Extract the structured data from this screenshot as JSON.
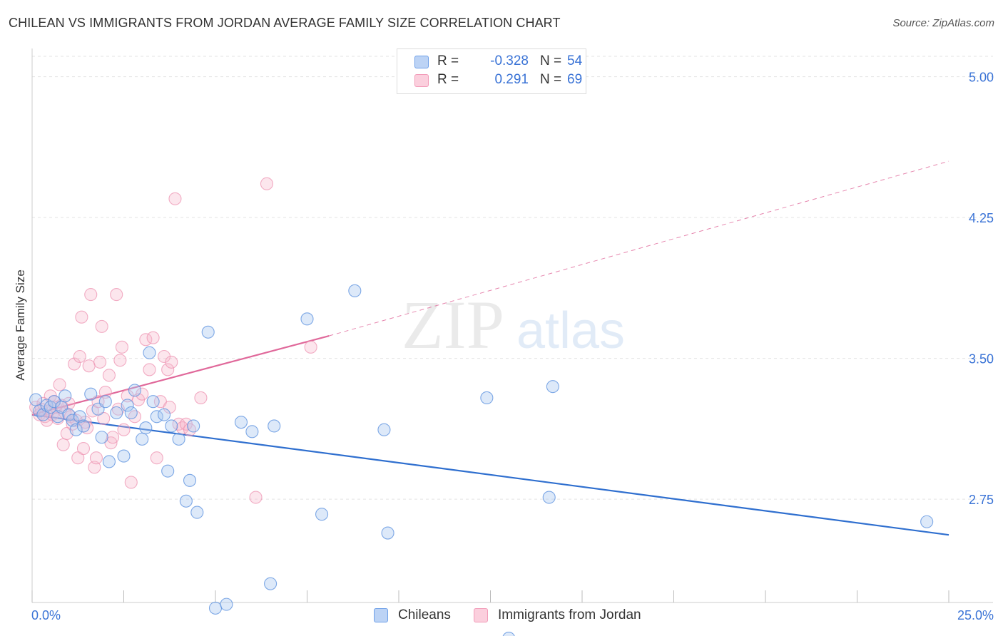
{
  "title": "CHILEAN VS IMMIGRANTS FROM JORDAN AVERAGE FAMILY SIZE CORRELATION CHART",
  "source": "Source: ZipAtlas.com",
  "watermark": {
    "zip": "ZIP",
    "atlas": "atlas"
  },
  "legend": {
    "rows": [
      {
        "r_label": "R =",
        "r_value": "-0.328",
        "n_label": "N =",
        "n_value": "54"
      },
      {
        "r_label": "R =",
        "r_value": "0.291",
        "n_label": "N =",
        "n_value": "69"
      }
    ]
  },
  "chart_data": {
    "type": "scatter",
    "title": "CHILEAN VS IMMIGRANTS FROM JORDAN AVERAGE FAMILY SIZE CORRELATION CHART",
    "xlabel": "",
    "ylabel": "Average Family Size",
    "xlim": [
      0,
      25
    ],
    "ylim": [
      2.2,
      5.12
    ],
    "x_tick_labels": [
      "0.0%",
      "25.0%"
    ],
    "y_ticks": [
      2.75,
      3.5,
      4.25,
      5.0
    ],
    "y_tick_labels": [
      "2.75",
      "3.50",
      "4.25",
      "5.00"
    ],
    "grid": true,
    "legend_position": "top-center",
    "colors": {
      "chileans": "#6fa0e8",
      "jordan": "#f29bb8",
      "chileans_line": "#2f6fcf",
      "jordan_line": "#e0689a",
      "axis_text": "#3a73d6"
    },
    "series": [
      {
        "name": "Chileans",
        "color": "#6fa0e8",
        "r": -0.328,
        "n": 54,
        "trend": {
          "x": [
            0,
            25
          ],
          "y": [
            3.2,
            2.56
          ]
        },
        "points": [
          [
            0.1,
            3.28
          ],
          [
            0.2,
            3.22
          ],
          [
            0.3,
            3.2
          ],
          [
            0.4,
            3.25
          ],
          [
            0.5,
            3.24
          ],
          [
            0.6,
            3.27
          ],
          [
            0.7,
            3.19
          ],
          [
            0.8,
            3.24
          ],
          [
            0.9,
            3.3
          ],
          [
            1.0,
            3.2
          ],
          [
            1.1,
            3.17
          ],
          [
            1.2,
            3.12
          ],
          [
            1.3,
            3.19
          ],
          [
            1.4,
            3.14
          ],
          [
            1.6,
            3.31
          ],
          [
            1.8,
            3.23
          ],
          [
            1.9,
            3.08
          ],
          [
            2.0,
            3.27
          ],
          [
            2.1,
            2.95
          ],
          [
            2.3,
            3.21
          ],
          [
            2.5,
            2.98
          ],
          [
            2.6,
            3.25
          ],
          [
            2.7,
            3.21
          ],
          [
            2.8,
            3.33
          ],
          [
            3.0,
            3.07
          ],
          [
            3.1,
            3.13
          ],
          [
            3.2,
            3.53
          ],
          [
            3.3,
            3.27
          ],
          [
            3.4,
            3.19
          ],
          [
            3.6,
            3.2
          ],
          [
            3.7,
            2.9
          ],
          [
            3.8,
            3.14
          ],
          [
            4.0,
            3.07
          ],
          [
            4.2,
            2.74
          ],
          [
            4.3,
            2.85
          ],
          [
            4.4,
            3.14
          ],
          [
            4.5,
            2.68
          ],
          [
            4.8,
            3.64
          ],
          [
            5.0,
            2.17
          ],
          [
            5.3,
            2.19
          ],
          [
            5.7,
            3.16
          ],
          [
            6.0,
            3.11
          ],
          [
            6.5,
            2.3
          ],
          [
            6.6,
            3.14
          ],
          [
            7.5,
            3.71
          ],
          [
            7.9,
            2.67
          ],
          [
            8.8,
            3.86
          ],
          [
            9.7,
            2.57
          ],
          [
            9.6,
            3.12
          ],
          [
            12.4,
            3.29
          ],
          [
            13.0,
            2.01
          ],
          [
            14.1,
            2.76
          ],
          [
            14.2,
            3.35
          ],
          [
            24.4,
            2.63
          ]
        ]
      },
      {
        "name": "Immigrants from Jordan",
        "color": "#f29bb8",
        "r": 0.291,
        "n": 69,
        "trend": {
          "x": [
            0,
            8.1
          ],
          "y": [
            3.2,
            3.62
          ]
        },
        "trend_projection": {
          "x": [
            8.1,
            25
          ],
          "y": [
            3.62,
            4.55
          ]
        },
        "points": [
          [
            0.1,
            3.24
          ],
          [
            0.2,
            3.2
          ],
          [
            0.25,
            3.23
          ],
          [
            0.3,
            3.26
          ],
          [
            0.35,
            3.19
          ],
          [
            0.4,
            3.17
          ],
          [
            0.45,
            3.22
          ],
          [
            0.5,
            3.3
          ],
          [
            0.55,
            3.2
          ],
          [
            0.6,
            3.27
          ],
          [
            0.65,
            3.24
          ],
          [
            0.7,
            3.18
          ],
          [
            0.75,
            3.36
          ],
          [
            0.8,
            3.25
          ],
          [
            0.85,
            3.04
          ],
          [
            0.9,
            3.21
          ],
          [
            0.95,
            3.1
          ],
          [
            1.0,
            3.26
          ],
          [
            1.05,
            3.19
          ],
          [
            1.1,
            3.15
          ],
          [
            1.15,
            3.47
          ],
          [
            1.2,
            3.17
          ],
          [
            1.25,
            2.97
          ],
          [
            1.3,
            3.51
          ],
          [
            1.35,
            3.72
          ],
          [
            1.4,
            3.02
          ],
          [
            1.45,
            3.16
          ],
          [
            1.5,
            3.13
          ],
          [
            1.55,
            3.46
          ],
          [
            1.6,
            3.84
          ],
          [
            1.65,
            3.22
          ],
          [
            1.7,
            2.92
          ],
          [
            1.75,
            2.97
          ],
          [
            1.8,
            3.27
          ],
          [
            1.85,
            3.48
          ],
          [
            1.9,
            3.67
          ],
          [
            1.95,
            3.18
          ],
          [
            2.0,
            3.32
          ],
          [
            2.1,
            3.41
          ],
          [
            2.15,
            3.05
          ],
          [
            2.2,
            3.08
          ],
          [
            2.3,
            3.84
          ],
          [
            2.35,
            3.23
          ],
          [
            2.4,
            3.49
          ],
          [
            2.45,
            3.56
          ],
          [
            2.5,
            3.12
          ],
          [
            2.7,
            2.84
          ],
          [
            2.8,
            3.19
          ],
          [
            2.9,
            3.28
          ],
          [
            3.0,
            3.31
          ],
          [
            3.1,
            3.6
          ],
          [
            3.2,
            3.44
          ],
          [
            3.3,
            3.61
          ],
          [
            3.4,
            2.97
          ],
          [
            3.5,
            3.27
          ],
          [
            3.6,
            3.51
          ],
          [
            3.7,
            3.44
          ],
          [
            3.75,
            3.24
          ],
          [
            3.8,
            3.48
          ],
          [
            3.9,
            4.35
          ],
          [
            4.0,
            3.15
          ],
          [
            4.1,
            3.13
          ],
          [
            4.2,
            3.15
          ],
          [
            4.3,
            3.12
          ],
          [
            4.6,
            3.29
          ],
          [
            6.1,
            2.76
          ],
          [
            6.4,
            4.43
          ],
          [
            7.6,
            3.56
          ],
          [
            2.6,
            3.3
          ]
        ]
      }
    ]
  },
  "bottom_legend": {
    "chileans": "Chileans",
    "jordan": "Immigrants from Jordan"
  }
}
